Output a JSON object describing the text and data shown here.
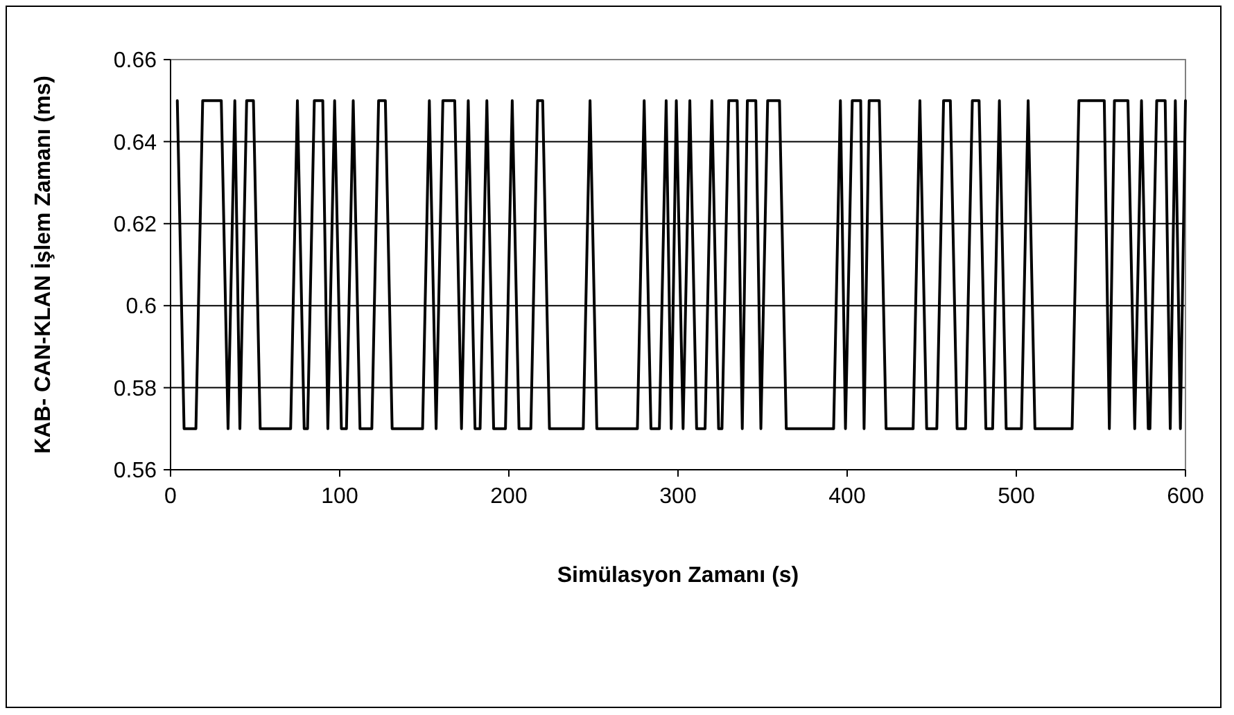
{
  "chart_data": {
    "type": "line",
    "xlabel": "Simülasyon Zamanı (s)",
    "ylabel": "KAB- CAN-KLAN İşlem Zamanı (ms)",
    "x": [
      4,
      8,
      15,
      19,
      30,
      34,
      38,
      41,
      45,
      49,
      53,
      71,
      75,
      79,
      81,
      85,
      90,
      93,
      97,
      101,
      104,
      108,
      112,
      119,
      123,
      127,
      131,
      149,
      153,
      157,
      161,
      168,
      172,
      176,
      180,
      183,
      187,
      191,
      198,
      202,
      206,
      213,
      217,
      220,
      224,
      244,
      248,
      252,
      276,
      280,
      284,
      289,
      293,
      296,
      299,
      303,
      307,
      311,
      316,
      320,
      324,
      326,
      330,
      335,
      338,
      341,
      346,
      349,
      353,
      360,
      364,
      392,
      396,
      399,
      403,
      408,
      410,
      413,
      419,
      423,
      439,
      443,
      447,
      453,
      457,
      461,
      465,
      470,
      474,
      478,
      482,
      486,
      490,
      494,
      503,
      507,
      511,
      533,
      537,
      552,
      555,
      558,
      566,
      570,
      574,
      578,
      579,
      583,
      588,
      591,
      594,
      597,
      600
    ],
    "series": [
      {
        "color": "#000000",
        "values": [
          0.65,
          0.57,
          0.57,
          0.65,
          0.65,
          0.57,
          0.65,
          0.57,
          0.65,
          0.65,
          0.57,
          0.57,
          0.65,
          0.57,
          0.57,
          0.65,
          0.65,
          0.57,
          0.65,
          0.57,
          0.57,
          0.65,
          0.57,
          0.57,
          0.65,
          0.65,
          0.57,
          0.57,
          0.65,
          0.57,
          0.65,
          0.65,
          0.57,
          0.65,
          0.57,
          0.57,
          0.65,
          0.57,
          0.57,
          0.65,
          0.57,
          0.57,
          0.65,
          0.65,
          0.57,
          0.57,
          0.65,
          0.57,
          0.57,
          0.65,
          0.57,
          0.57,
          0.65,
          0.57,
          0.65,
          0.57,
          0.65,
          0.57,
          0.57,
          0.65,
          0.57,
          0.57,
          0.65,
          0.65,
          0.57,
          0.65,
          0.65,
          0.57,
          0.65,
          0.65,
          0.57,
          0.57,
          0.65,
          0.57,
          0.65,
          0.65,
          0.57,
          0.65,
          0.65,
          0.57,
          0.57,
          0.65,
          0.57,
          0.57,
          0.65,
          0.65,
          0.57,
          0.57,
          0.65,
          0.65,
          0.57,
          0.57,
          0.65,
          0.57,
          0.57,
          0.65,
          0.57,
          0.57,
          0.65,
          0.65,
          0.57,
          0.65,
          0.65,
          0.57,
          0.65,
          0.57,
          0.57,
          0.65,
          0.65,
          0.57,
          0.65,
          0.57,
          0.65
        ]
      }
    ],
    "xlim": [
      0,
      600
    ],
    "xticks": [
      0,
      100,
      200,
      300,
      400,
      500,
      600
    ],
    "ylim": [
      0.56,
      0.66
    ],
    "yticks": [
      0.56,
      0.58,
      0.6,
      0.62,
      0.64,
      0.66
    ],
    "grid": "y",
    "line_style": "solid",
    "marker": "none"
  }
}
